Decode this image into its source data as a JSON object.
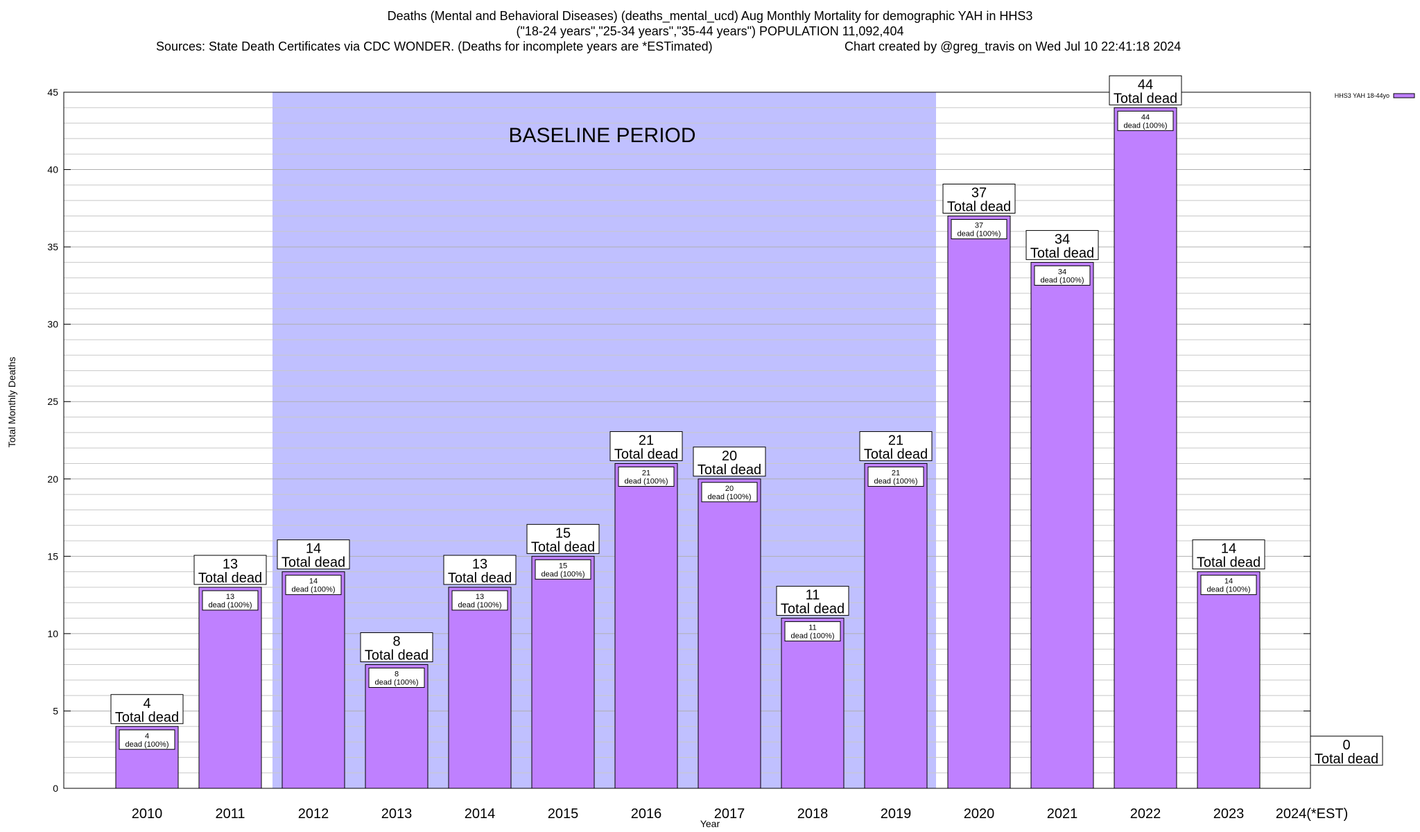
{
  "chart_title": {
    "line1": "Deaths (Mental and Behavioral Diseases) (deaths_mental_ucd) Aug Monthly Mortality for demographic YAH in HHS3",
    "line2": "(\"18-24 years\",\"25-34 years\",\"35-44 years\") POPULATION 11,092,404",
    "sources": "Sources: State Death Certificates via CDC WONDER. (Deaths for incomplete years are *ESTimated)",
    "credit": "Chart created by @greg_travis on Wed Jul 10 22:41:18 2024"
  },
  "chart_data": {
    "type": "bar",
    "title": "Deaths (Mental and Behavioral Diseases) (deaths_mental_ucd) Aug Monthly Mortality for demographic YAH in HHS3",
    "xlabel": "Year",
    "ylabel": "Total Monthly Deaths",
    "ylim": [
      0,
      45
    ],
    "yticks": [
      0,
      5,
      10,
      15,
      20,
      25,
      30,
      35,
      40,
      45
    ],
    "categories": [
      "2010",
      "2011",
      "2012",
      "2013",
      "2014",
      "2015",
      "2016",
      "2017",
      "2018",
      "2019",
      "2020",
      "2021",
      "2022",
      "2023",
      "2024(*EST)"
    ],
    "series": [
      {
        "name": "HHS3 YAH 18-44yo",
        "color": "#bf80ff",
        "values": [
          4,
          13,
          14,
          8,
          13,
          15,
          21,
          20,
          11,
          21,
          37,
          34,
          44,
          14,
          0
        ]
      }
    ],
    "total_label": "Total dead",
    "inner_label": "dead (100%)",
    "baseline": {
      "label": "BASELINE PERIOD",
      "from": "2012",
      "to": "2019",
      "color": "#c0c0ff"
    },
    "grid": true,
    "legend_position": "top-right"
  }
}
